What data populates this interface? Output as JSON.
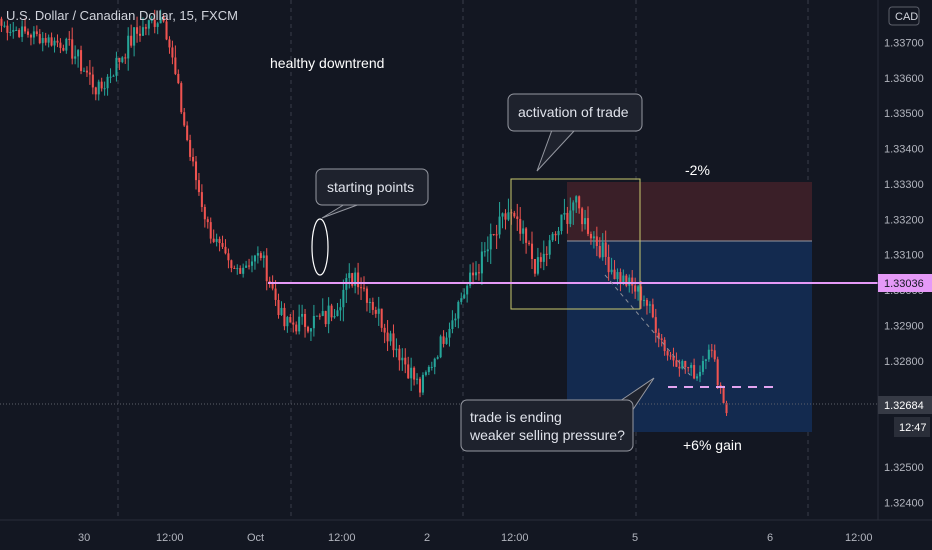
{
  "header": {
    "symbol": "U.S. Dollar / Canadian Dollar, 15, FXCM"
  },
  "price_axis": {
    "currency_label": "CAD",
    "ticks": [
      "1.33700",
      "1.33600",
      "1.33500",
      "1.33400",
      "1.33300",
      "1.33200",
      "1.33100",
      "1.33000",
      "1.32900",
      "1.32800",
      "1.32500",
      "1.32400"
    ],
    "current_price_label": "1.33036",
    "last_price_label": "1.32684",
    "countdown_label": "12:47"
  },
  "time_axis": {
    "ticks": [
      "30",
      "12:00",
      "Oct",
      "12:00",
      "2",
      "12:00",
      "5",
      "6",
      "12:00"
    ]
  },
  "annotations": {
    "healthy_downtrend": "healthy downtrend",
    "starting_points": "starting points",
    "activation": "activation of trade",
    "stop_pct": "-2%",
    "trade_ending_line1": "trade is ending",
    "trade_ending_line2": "weaker selling pressure?",
    "gain": "+6% gain"
  },
  "colors": {
    "background": "#131722",
    "up_candle": "#26a69a",
    "down_candle": "#ef5350",
    "horizontal_line": "#e599f7",
    "stop_zone": "#3a1f28",
    "target_zone": "#132a4f",
    "activation_box": "#c8c86e"
  },
  "chart_data": {
    "type": "candlestick",
    "title": "U.S. Dollar / Canadian Dollar, 15, FXCM",
    "xlabel": "",
    "ylabel": "",
    "ylim": [
      1.3235,
      1.3382
    ],
    "horizontal_level": 1.33036,
    "last_price": 1.32684,
    "segments": [
      {
        "n": 24,
        "start": 1.3375,
        "end": 1.3369,
        "vol": 0.0004
      },
      {
        "n": 10,
        "start": 1.3369,
        "end": 1.3356,
        "vol": 0.0006
      },
      {
        "n": 12,
        "start": 1.3356,
        "end": 1.3372,
        "vol": 0.0006
      },
      {
        "n": 10,
        "start": 1.3372,
        "end": 1.3378,
        "vol": 0.0005
      },
      {
        "n": 9,
        "start": 1.3378,
        "end": 1.3338,
        "vol": 0.0006
      },
      {
        "n": 6,
        "start": 1.3338,
        "end": 1.3318,
        "vol": 0.0005
      },
      {
        "n": 8,
        "start": 1.3318,
        "end": 1.3305,
        "vol": 0.0005
      },
      {
        "n": 10,
        "start": 1.3305,
        "end": 1.331,
        "vol": 0.0004
      },
      {
        "n": 8,
        "start": 1.331,
        "end": 1.329,
        "vol": 0.0005
      },
      {
        "n": 14,
        "start": 1.329,
        "end": 1.3292,
        "vol": 0.0006
      },
      {
        "n": 10,
        "start": 1.3292,
        "end": 1.3305,
        "vol": 0.0007
      },
      {
        "n": 10,
        "start": 1.3305,
        "end": 1.329,
        "vol": 0.0006
      },
      {
        "n": 12,
        "start": 1.329,
        "end": 1.3272,
        "vol": 0.0006
      },
      {
        "n": 14,
        "start": 1.3272,
        "end": 1.3298,
        "vol": 0.0005
      },
      {
        "n": 8,
        "start": 1.3298,
        "end": 1.331,
        "vol": 0.0006
      },
      {
        "n": 8,
        "start": 1.331,
        "end": 1.3322,
        "vol": 0.0007
      },
      {
        "n": 10,
        "start": 1.3322,
        "end": 1.3306,
        "vol": 0.0007
      },
      {
        "n": 12,
        "start": 1.3306,
        "end": 1.3325,
        "vol": 0.0007
      },
      {
        "n": 14,
        "start": 1.3325,
        "end": 1.3305,
        "vol": 0.0006
      },
      {
        "n": 10,
        "start": 1.3305,
        "end": 1.3298,
        "vol": 0.0005
      },
      {
        "n": 8,
        "start": 1.3298,
        "end": 1.3282,
        "vol": 0.0005
      },
      {
        "n": 10,
        "start": 1.3282,
        "end": 1.3276,
        "vol": 0.0004
      },
      {
        "n": 4,
        "start": 1.3276,
        "end": 1.3285,
        "vol": 0.0005
      },
      {
        "n": 6,
        "start": 1.3285,
        "end": 1.3266,
        "vol": 0.0005
      }
    ],
    "trade": {
      "entry": 1.33162,
      "stop": 1.33325,
      "target": 1.32705
    }
  }
}
